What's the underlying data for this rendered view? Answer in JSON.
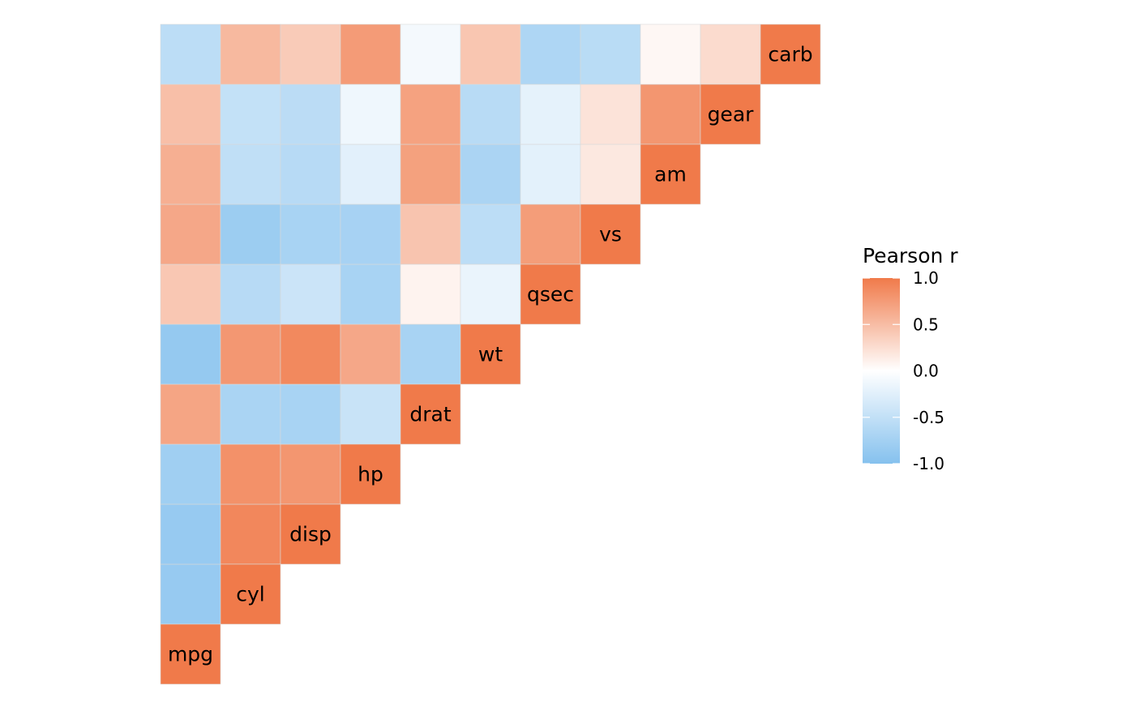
{
  "chart_data": {
    "type": "heatmap",
    "title": "",
    "variables": [
      "mpg",
      "cyl",
      "disp",
      "hp",
      "drat",
      "wt",
      "qsec",
      "vs",
      "am",
      "gear",
      "carb"
    ],
    "layout": "lower-left triangle; diagonal cells hold variable names; off-diagonal cells show correlation by fill color only",
    "cells": [
      {
        "row": "cyl",
        "col": "mpg",
        "value": -0.85
      },
      {
        "row": "disp",
        "col": "mpg",
        "value": -0.85
      },
      {
        "row": "hp",
        "col": "mpg",
        "value": -0.78
      },
      {
        "row": "drat",
        "col": "mpg",
        "value": 0.68
      },
      {
        "row": "wt",
        "col": "mpg",
        "value": -0.87
      },
      {
        "row": "qsec",
        "col": "mpg",
        "value": 0.42
      },
      {
        "row": "vs",
        "col": "mpg",
        "value": 0.66
      },
      {
        "row": "am",
        "col": "mpg",
        "value": 0.6
      },
      {
        "row": "gear",
        "col": "mpg",
        "value": 0.48
      },
      {
        "row": "carb",
        "col": "mpg",
        "value": -0.55
      },
      {
        "row": "disp",
        "col": "cyl",
        "value": 0.9
      },
      {
        "row": "hp",
        "col": "cyl",
        "value": 0.83
      },
      {
        "row": "drat",
        "col": "cyl",
        "value": -0.7
      },
      {
        "row": "wt",
        "col": "cyl",
        "value": 0.78
      },
      {
        "row": "qsec",
        "col": "cyl",
        "value": -0.59
      },
      {
        "row": "vs",
        "col": "cyl",
        "value": -0.81
      },
      {
        "row": "am",
        "col": "cyl",
        "value": -0.52
      },
      {
        "row": "gear",
        "col": "cyl",
        "value": -0.49
      },
      {
        "row": "carb",
        "col": "cyl",
        "value": 0.53
      },
      {
        "row": "hp",
        "col": "disp",
        "value": 0.79
      },
      {
        "row": "drat",
        "col": "disp",
        "value": -0.71
      },
      {
        "row": "wt",
        "col": "disp",
        "value": 0.89
      },
      {
        "row": "qsec",
        "col": "disp",
        "value": -0.43
      },
      {
        "row": "vs",
        "col": "disp",
        "value": -0.71
      },
      {
        "row": "am",
        "col": "disp",
        "value": -0.59
      },
      {
        "row": "gear",
        "col": "disp",
        "value": -0.56
      },
      {
        "row": "carb",
        "col": "disp",
        "value": 0.39
      },
      {
        "row": "drat",
        "col": "hp",
        "value": -0.45
      },
      {
        "row": "wt",
        "col": "hp",
        "value": 0.66
      },
      {
        "row": "qsec",
        "col": "hp",
        "value": -0.71
      },
      {
        "row": "vs",
        "col": "hp",
        "value": -0.72
      },
      {
        "row": "am",
        "col": "hp",
        "value": -0.24
      },
      {
        "row": "gear",
        "col": "hp",
        "value": -0.13
      },
      {
        "row": "carb",
        "col": "hp",
        "value": 0.75
      },
      {
        "row": "wt",
        "col": "drat",
        "value": -0.71
      },
      {
        "row": "qsec",
        "col": "drat",
        "value": 0.09
      },
      {
        "row": "vs",
        "col": "drat",
        "value": 0.44
      },
      {
        "row": "am",
        "col": "drat",
        "value": 0.71
      },
      {
        "row": "gear",
        "col": "drat",
        "value": 0.7
      },
      {
        "row": "carb",
        "col": "drat",
        "value": -0.09
      },
      {
        "row": "qsec",
        "col": "wt",
        "value": -0.17
      },
      {
        "row": "vs",
        "col": "wt",
        "value": -0.55
      },
      {
        "row": "am",
        "col": "wt",
        "value": -0.69
      },
      {
        "row": "gear",
        "col": "wt",
        "value": -0.58
      },
      {
        "row": "carb",
        "col": "wt",
        "value": 0.43
      },
      {
        "row": "vs",
        "col": "qsec",
        "value": 0.74
      },
      {
        "row": "am",
        "col": "qsec",
        "value": -0.23
      },
      {
        "row": "gear",
        "col": "qsec",
        "value": -0.21
      },
      {
        "row": "carb",
        "col": "qsec",
        "value": -0.66
      },
      {
        "row": "am",
        "col": "vs",
        "value": 0.17
      },
      {
        "row": "gear",
        "col": "vs",
        "value": 0.21
      },
      {
        "row": "carb",
        "col": "vs",
        "value": -0.57
      },
      {
        "row": "gear",
        "col": "am",
        "value": 0.79
      },
      {
        "row": "carb",
        "col": "am",
        "value": 0.06
      },
      {
        "row": "carb",
        "col": "gear",
        "value": 0.27
      }
    ],
    "diagonal_value": 1.0,
    "legend": {
      "title": "Pearson r",
      "position": "right",
      "ticks": [
        "1.0",
        "0.5",
        "0.0",
        "-0.5",
        "-1.0"
      ],
      "range": [
        -1,
        1
      ]
    },
    "colors": {
      "high": "#F07A4A",
      "mid": "#FFFFFF",
      "low": "#85C1EE",
      "cell_border": "#D9D9D9"
    },
    "grid": false
  }
}
